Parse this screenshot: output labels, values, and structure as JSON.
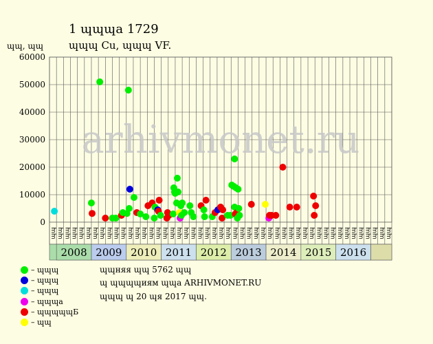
{
  "header": {
    "title": "1 ɰɰɰa 1729",
    "subtitle": "ɰɰɰ Cu, ɰɰɰ VF.",
    "units": "ɰɰ, ɰɰ"
  },
  "watermark": "arhivmonet.ru",
  "legend": [
    {
      "label": "– ɰɰɰ",
      "color": "#00ee00"
    },
    {
      "label": "– ɰɰɰ",
      "color": "#0000dd"
    },
    {
      "label": "– ɰɰɰ",
      "color": "#00dddd"
    },
    {
      "label": "– ɰɰɰa",
      "color": "#ee00ee"
    },
    {
      "label": "– ɰɰɰɰɰБ",
      "color": "#ee0000"
    },
    {
      "label": "– ɰɰ",
      "color": "#ffff00"
    }
  ],
  "notes": {
    "line1": "ɰɰняя ɰɰ 5762 ɰɰ",
    "line2": "ɰ ɰɰɰɰиям ɰɰa ARHIVMONET.RU",
    "line3": "ɰɰɰ ɰ 20 ɰя 2017 ɰɰ."
  },
  "chart_data": {
    "type": "scatter",
    "ylim": [
      0,
      60000
    ],
    "yticks": [
      "0",
      "10000",
      "20000",
      "30000",
      "40000",
      "50000",
      "60000"
    ],
    "grid": true,
    "months": [
      "ɰɰ",
      "ɰɰ",
      "ɰɰ",
      "ɰɰ",
      "ɰɰ",
      "ɰɰ",
      "ɰɰ",
      "ɰɰ",
      "ɰɰ",
      "ɰɰ",
      "ɰɰ",
      "ɰɰ",
      "ɰɰ",
      "ɰɰ",
      "ɰɰ",
      "ɰɰ",
      "ɰɰ",
      "ɰɰ",
      "ɰɰ",
      "ɰɰ",
      "ɰɰ",
      "ɰɰ",
      "ɰɰ",
      "ɰɰ",
      "ɰɰ",
      "ɰɰ",
      "ɰɰ",
      "ɰɰ",
      "ɰɰ",
      "ɰɰ",
      "ɰɰ",
      "ɰɰ",
      "ɰɰ",
      "ɰɰ",
      "ɰɰ",
      "ɰɰ",
      "ɰɰ",
      "ɰɰ",
      "ɰɰ",
      "ɰɰ",
      "ɰɰ",
      "ɰɰ",
      "ɰɰ",
      "ɰɰ",
      "ɰɰ",
      "ɰɰ",
      "ɰɰ",
      "ɰɰ",
      "ɰɰ"
    ],
    "years": [
      {
        "label": "2008",
        "start_half": 2,
        "end_half": 12,
        "color": "#aaddaa"
      },
      {
        "label": "2009",
        "start_half": 12,
        "end_half": 22,
        "color": "#bbccee"
      },
      {
        "label": "2010",
        "start_half": 22,
        "end_half": 32,
        "color": "#eeeebb"
      },
      {
        "label": "2011",
        "start_half": 32,
        "end_half": 42,
        "color": "#cce0ee"
      },
      {
        "label": "2012",
        "start_half": 42,
        "end_half": 52,
        "color": "#ddeeaa"
      },
      {
        "label": "2013",
        "start_half": 52,
        "end_half": 62,
        "color": "#bbccdd"
      },
      {
        "label": "2014",
        "start_half": 62,
        "end_half": 72,
        "color": "#eeeecc"
      },
      {
        "label": "2015",
        "start_half": 72,
        "end_half": 82,
        "color": "#ddeebb"
      },
      {
        "label": "2016",
        "start_half": 82,
        "end_half": 92,
        "color": "#cce0ee"
      }
    ],
    "points": [
      {
        "x": 0.2,
        "y": 4000,
        "color": "#00dddd"
      },
      {
        "x": 5.5,
        "y": 7000,
        "color": "#00ee00"
      },
      {
        "x": 5.6,
        "y": 3200,
        "color": "#ee0000"
      },
      {
        "x": 6.7,
        "y": 51000,
        "color": "#00ee00"
      },
      {
        "x": 7.5,
        "y": 1500,
        "color": "#ee0000"
      },
      {
        "x": 8.5,
        "y": 1500,
        "color": "#00ee00"
      },
      {
        "x": 9.0,
        "y": 1500,
        "color": "#00ee00"
      },
      {
        "x": 9.8,
        "y": 2500,
        "color": "#ee0000"
      },
      {
        "x": 10.0,
        "y": 3500,
        "color": "#00ee00"
      },
      {
        "x": 10.6,
        "y": 3200,
        "color": "#00ee00"
      },
      {
        "x": 10.8,
        "y": 48000,
        "color": "#00ee00"
      },
      {
        "x": 10.9,
        "y": 5000,
        "color": "#00ee00"
      },
      {
        "x": 11.0,
        "y": 12000,
        "color": "#0000dd"
      },
      {
        "x": 11.6,
        "y": 9000,
        "color": "#00ee00"
      },
      {
        "x": 12.0,
        "y": 3500,
        "color": "#ee0000"
      },
      {
        "x": 12.5,
        "y": 3000,
        "color": "#00ee00"
      },
      {
        "x": 13.3,
        "y": 2000,
        "color": "#00ee00"
      },
      {
        "x": 13.6,
        "y": 6000,
        "color": "#ee0000"
      },
      {
        "x": 14.2,
        "y": 7000,
        "color": "#ee0000"
      },
      {
        "x": 14.5,
        "y": 1500,
        "color": "#00ee00"
      },
      {
        "x": 14.6,
        "y": 5500,
        "color": "#00ee00"
      },
      {
        "x": 15.0,
        "y": 4500,
        "color": "#0000dd"
      },
      {
        "x": 15.1,
        "y": 4000,
        "color": "#ee0000"
      },
      {
        "x": 15.2,
        "y": 8000,
        "color": "#ee0000"
      },
      {
        "x": 15.4,
        "y": 2500,
        "color": "#00ee00"
      },
      {
        "x": 16.3,
        "y": 1500,
        "color": "#ee0000"
      },
      {
        "x": 16.4,
        "y": 3500,
        "color": "#ee0000"
      },
      {
        "x": 16.6,
        "y": 2500,
        "color": "#ee0000"
      },
      {
        "x": 17.2,
        "y": 3000,
        "color": "#00ee00"
      },
      {
        "x": 17.3,
        "y": 12500,
        "color": "#00ee00"
      },
      {
        "x": 17.4,
        "y": 11000,
        "color": "#00ee00"
      },
      {
        "x": 17.5,
        "y": 10500,
        "color": "#00ee00"
      },
      {
        "x": 17.8,
        "y": 16000,
        "color": "#00ee00"
      },
      {
        "x": 17.9,
        "y": 11000,
        "color": "#00ee00"
      },
      {
        "x": 17.7,
        "y": 7000,
        "color": "#00ee00"
      },
      {
        "x": 18.1,
        "y": 3500,
        "color": "#ffff00"
      },
      {
        "x": 18.2,
        "y": 1500,
        "color": "#ee00ee"
      },
      {
        "x": 18.3,
        "y": 6000,
        "color": "#00ee00"
      },
      {
        "x": 18.5,
        "y": 7000,
        "color": "#00ee00"
      },
      {
        "x": 18.4,
        "y": 2500,
        "color": "#00ee00"
      },
      {
        "x": 18.8,
        "y": 3500,
        "color": "#00ee00"
      },
      {
        "x": 19.6,
        "y": 6000,
        "color": "#00ee00"
      },
      {
        "x": 19.8,
        "y": 3500,
        "color": "#00ee00"
      },
      {
        "x": 20.1,
        "y": 2000,
        "color": "#00ee00"
      },
      {
        "x": 21.2,
        "y": 6000,
        "color": "#ee0000"
      },
      {
        "x": 21.6,
        "y": 4500,
        "color": "#00ee00"
      },
      {
        "x": 21.7,
        "y": 2000,
        "color": "#00ee00"
      },
      {
        "x": 21.9,
        "y": 8000,
        "color": "#ee0000"
      },
      {
        "x": 22.8,
        "y": 2000,
        "color": "#00ee00"
      },
      {
        "x": 23.2,
        "y": 3500,
        "color": "#ee0000"
      },
      {
        "x": 23.6,
        "y": 4500,
        "color": "#0000dd"
      },
      {
        "x": 24.0,
        "y": 5500,
        "color": "#ee0000"
      },
      {
        "x": 24.2,
        "y": 1500,
        "color": "#ee0000"
      },
      {
        "x": 24.3,
        "y": 4500,
        "color": "#ee0000"
      },
      {
        "x": 25.0,
        "y": 2500,
        "color": "#00ee00"
      },
      {
        "x": 25.4,
        "y": 2500,
        "color": "#00ee00"
      },
      {
        "x": 25.6,
        "y": 13500,
        "color": "#00ee00"
      },
      {
        "x": 25.9,
        "y": 13000,
        "color": "#00ee00"
      },
      {
        "x": 26.2,
        "y": 12500,
        "color": "#00ee00"
      },
      {
        "x": 26.5,
        "y": 12000,
        "color": "#00ee00"
      },
      {
        "x": 26.0,
        "y": 23000,
        "color": "#00ee00"
      },
      {
        "x": 26.0,
        "y": 5500,
        "color": "#00ee00"
      },
      {
        "x": 26.1,
        "y": 3000,
        "color": "#ee0000"
      },
      {
        "x": 26.3,
        "y": 3500,
        "color": "#ee0000"
      },
      {
        "x": 26.4,
        "y": 1500,
        "color": "#00ee00"
      },
      {
        "x": 26.6,
        "y": 5000,
        "color": "#00ee00"
      },
      {
        "x": 26.7,
        "y": 2500,
        "color": "#00ee00"
      },
      {
        "x": 28.4,
        "y": 6500,
        "color": "#ee0000"
      },
      {
        "x": 30.4,
        "y": 6500,
        "color": "#ffff00"
      },
      {
        "x": 30.9,
        "y": 1500,
        "color": "#ee00ee"
      },
      {
        "x": 31.0,
        "y": 2500,
        "color": "#ee0000"
      },
      {
        "x": 31.3,
        "y": 2500,
        "color": "#ee0000"
      },
      {
        "x": 31.9,
        "y": 2500,
        "color": "#ee0000"
      },
      {
        "x": 32.9,
        "y": 20000,
        "color": "#ee0000"
      },
      {
        "x": 33.9,
        "y": 5500,
        "color": "#ee0000"
      },
      {
        "x": 34.9,
        "y": 5500,
        "color": "#ee0000"
      },
      {
        "x": 37.3,
        "y": 9500,
        "color": "#ee0000"
      },
      {
        "x": 37.4,
        "y": 2500,
        "color": "#ee0000"
      },
      {
        "x": 37.6,
        "y": 6000,
        "color": "#ee0000"
      }
    ]
  }
}
